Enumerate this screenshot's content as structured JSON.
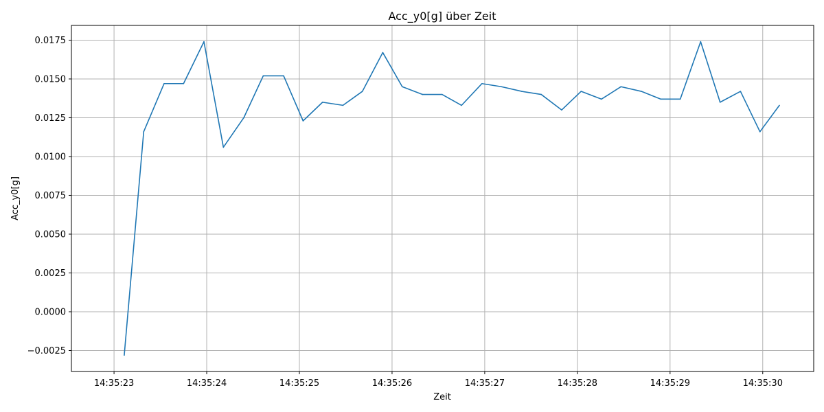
{
  "chart_data": {
    "type": "line",
    "title": "Acc_y0[g] über Zeit",
    "xlabel": "Zeit",
    "ylabel": "Acc_y0[g]",
    "grid": true,
    "xlim": [
      22.54,
      30.55
    ],
    "ylim": [
      -0.00385,
      0.01845
    ],
    "x_ticks": [
      {
        "value": 23,
        "label": "14:35:23"
      },
      {
        "value": 24,
        "label": "14:35:24"
      },
      {
        "value": 25,
        "label": "14:35:25"
      },
      {
        "value": 26,
        "label": "14:35:26"
      },
      {
        "value": 27,
        "label": "14:35:27"
      },
      {
        "value": 28,
        "label": "14:35:28"
      },
      {
        "value": 29,
        "label": "14:35:29"
      },
      {
        "value": 30,
        "label": "14:35:30"
      }
    ],
    "y_ticks": [
      {
        "value": -0.0025,
        "label": "−0.0025"
      },
      {
        "value": 0.0,
        "label": "0.0000"
      },
      {
        "value": 0.0025,
        "label": "0.0025"
      },
      {
        "value": 0.005,
        "label": "0.0050"
      },
      {
        "value": 0.0075,
        "label": "0.0075"
      },
      {
        "value": 0.01,
        "label": "0.0100"
      },
      {
        "value": 0.0125,
        "label": "0.0125"
      },
      {
        "value": 0.015,
        "label": "0.0150"
      },
      {
        "value": 0.0175,
        "label": "0.0175"
      }
    ],
    "series": [
      {
        "color": "#1f77b4",
        "x": [
          23.11,
          23.32,
          23.54,
          23.75,
          23.97,
          24.18,
          24.4,
          24.61,
          24.83,
          25.04,
          25.25,
          25.47,
          25.68,
          25.9,
          26.11,
          26.33,
          26.54,
          26.75,
          26.97,
          27.18,
          27.4,
          27.61,
          27.83,
          28.04,
          28.26,
          28.47,
          28.69,
          28.9,
          29.11,
          29.33,
          29.54,
          29.76,
          29.97,
          30.18
        ],
        "values": [
          -0.0028,
          0.0116,
          0.0147,
          0.0147,
          0.0174,
          0.0106,
          0.0125,
          0.0152,
          0.0152,
          0.0123,
          0.0135,
          0.0133,
          0.0142,
          0.0167,
          0.0145,
          0.014,
          0.014,
          0.0133,
          0.0147,
          0.0145,
          0.0142,
          0.014,
          0.013,
          0.0142,
          0.0137,
          0.0145,
          0.0142,
          0.0137,
          0.0137,
          0.0174,
          0.0135,
          0.0142,
          0.0116,
          0.0133
        ]
      }
    ]
  }
}
